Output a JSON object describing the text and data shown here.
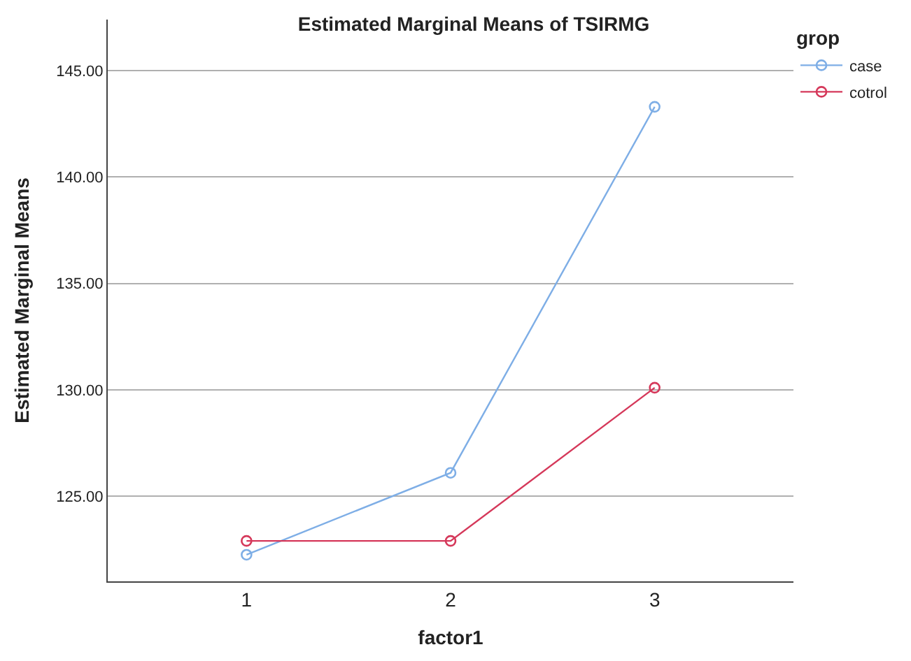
{
  "chart_data": {
    "type": "line",
    "title": "Estimated Marginal Means of TSIRMG",
    "xlabel": "factor1",
    "ylabel": "Estimated Marginal Means",
    "legend_title": "grop",
    "categories": [
      "1",
      "2",
      "3"
    ],
    "series": [
      {
        "name": "case",
        "color": "#7eaee6",
        "values": [
          122.25,
          126.1,
          143.3
        ]
      },
      {
        "name": "cotrol",
        "color": "#d5385a",
        "values": [
          122.9,
          122.9,
          130.1
        ]
      }
    ],
    "ylim": [
      121,
      147.4
    ],
    "yticks": [
      {
        "value": 125,
        "label": "125.00"
      },
      {
        "value": 130,
        "label": "130.00"
      },
      {
        "value": 135,
        "label": "135.00"
      },
      {
        "value": 140,
        "label": "140.00"
      },
      {
        "value": 145,
        "label": "145.00"
      }
    ],
    "grid": "y",
    "legend": "top right",
    "marker": "circle",
    "line_style": "solid"
  }
}
